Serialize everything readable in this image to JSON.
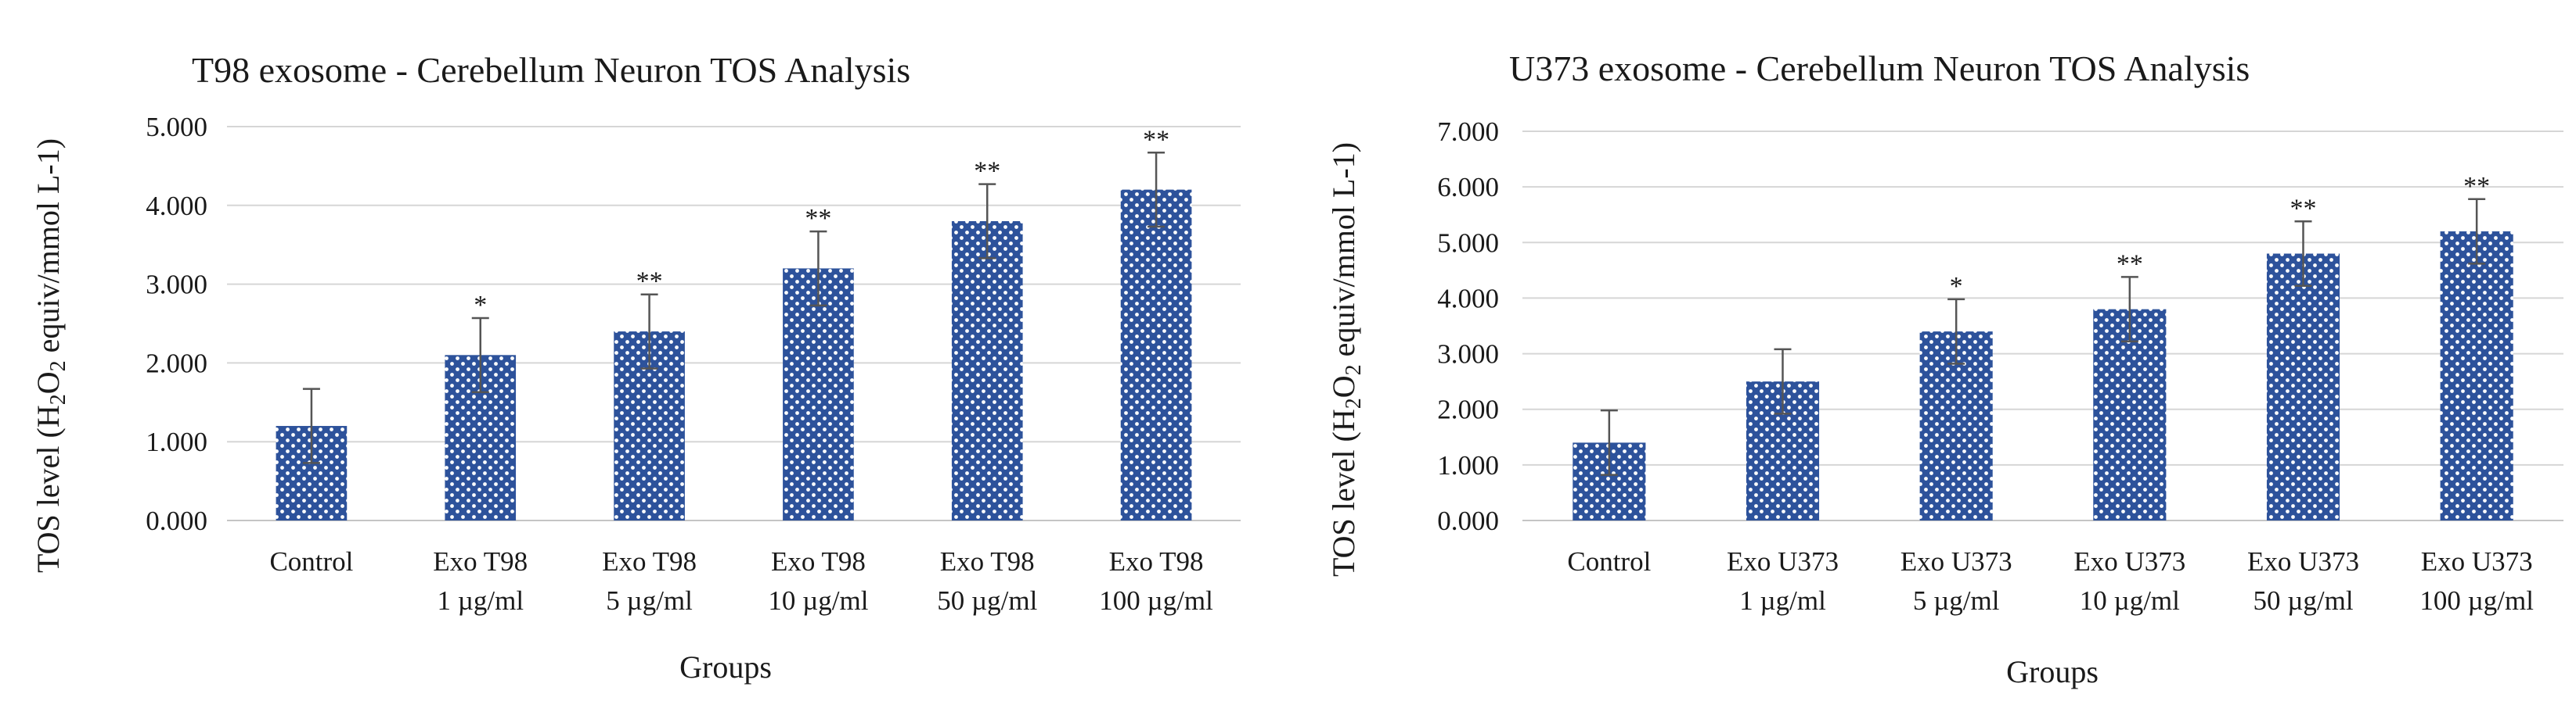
{
  "colors": {
    "bar": "#2d529b",
    "dot": "#ffffff",
    "grid": "#d6d6d6",
    "text": "#1a1a1a"
  },
  "chart_data": [
    {
      "type": "bar",
      "title": "T98 exosome - Cerebellum Neuron TOS Analysis",
      "xlabel": "Groups",
      "ylabel_parts": {
        "pre": "TOS level (H",
        "sub1": "2",
        "mid": "O",
        "sub2": "2",
        "post": " equiv/mmol L-1)"
      },
      "ylim": [
        0,
        5
      ],
      "yticks": [
        "0.000",
        "1.000",
        "2.000",
        "3.000",
        "4.000",
        "5.000"
      ],
      "categories": [
        {
          "line1": "Control",
          "line2": ""
        },
        {
          "line1": "Exo T98",
          "line2": "1 µg/ml"
        },
        {
          "line1": "Exo T98",
          "line2": "5 µg/ml"
        },
        {
          "line1": "Exo T98",
          "line2": "10 µg/ml"
        },
        {
          "line1": "Exo T98",
          "line2": "50 µg/ml"
        },
        {
          "line1": "Exo T98",
          "line2": "100 µg/ml"
        }
      ],
      "values": [
        1.2,
        2.1,
        2.4,
        3.2,
        3.8,
        4.2
      ],
      "errors": [
        0.47,
        0.47,
        0.47,
        0.47,
        0.47,
        0.47
      ],
      "significance": [
        "",
        "*",
        "**",
        "**",
        "**",
        "**"
      ]
    },
    {
      "type": "bar",
      "title": "U373 exosome - Cerebellum Neuron TOS Analysis",
      "xlabel": "Groups",
      "ylabel_parts": {
        "pre": "TOS level (H",
        "sub1": "2",
        "mid": "O",
        "sub2": "2",
        "post": " equiv/mmol L-1)"
      },
      "ylim": [
        0,
        7
      ],
      "yticks": [
        "0.000",
        "1.000",
        "2.000",
        "3.000",
        "4.000",
        "5.000",
        "6.000",
        "7.000"
      ],
      "categories": [
        {
          "line1": "Control",
          "line2": ""
        },
        {
          "line1": "Exo U373",
          "line2": "1 µg/ml"
        },
        {
          "line1": "Exo U373",
          "line2": "5 µg/ml"
        },
        {
          "line1": "Exo U373",
          "line2": "10 µg/ml"
        },
        {
          "line1": "Exo U373",
          "line2": "50 µg/ml"
        },
        {
          "line1": "Exo U373",
          "line2": "100 µg/ml"
        }
      ],
      "values": [
        1.4,
        2.5,
        3.4,
        3.8,
        4.8,
        5.2
      ],
      "errors": [
        0.58,
        0.58,
        0.58,
        0.58,
        0.58,
        0.58
      ],
      "significance": [
        "",
        "",
        "*",
        "**",
        "**",
        "**"
      ]
    }
  ]
}
